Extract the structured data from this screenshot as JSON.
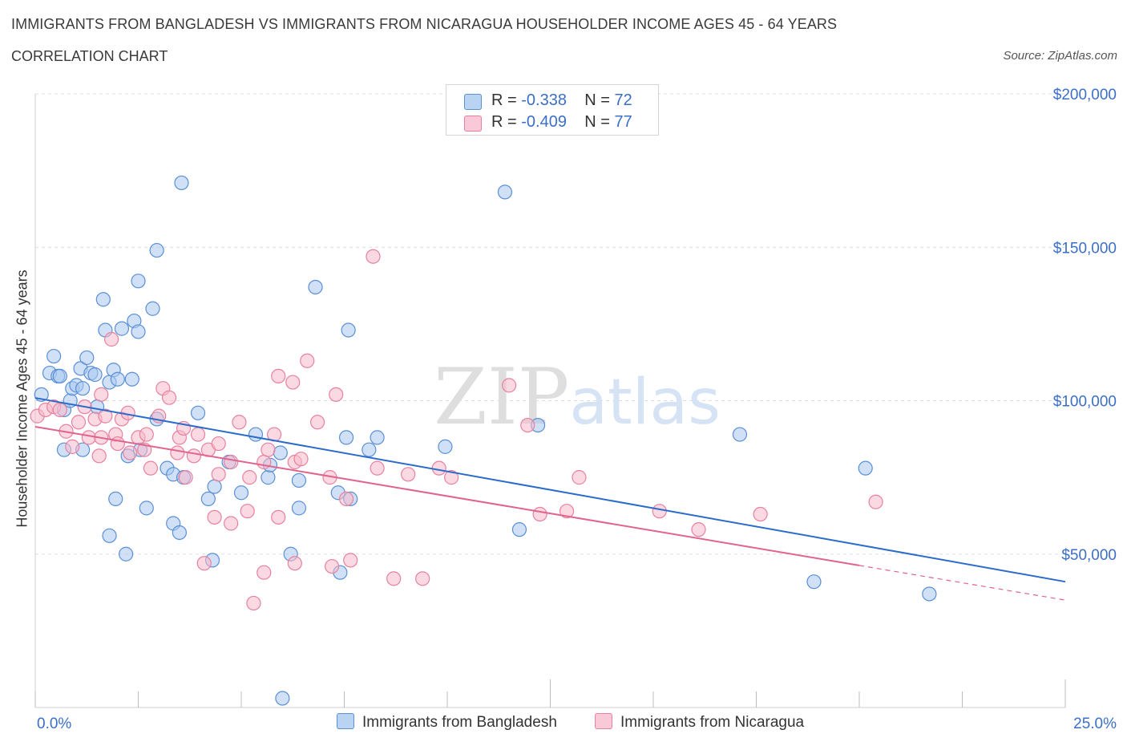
{
  "header": {
    "title": "IMMIGRANTS FROM BANGLADESH VS IMMIGRANTS FROM NICARAGUA HOUSEHOLDER INCOME AGES 45 - 64 YEARS",
    "subtitle": "CORRELATION CHART",
    "source": "Source: ZipAtlas.com"
  },
  "stats_legend": {
    "rows": [
      {
        "r_label": "R = ",
        "r_value": "-0.338",
        "n_label": "N = ",
        "n_value": "72"
      },
      {
        "r_label": "R = ",
        "r_value": "-0.409",
        "n_label": "N = ",
        "n_value": "77"
      }
    ]
  },
  "colors": {
    "bangladesh_fill": "#a9c8f0",
    "bangladesh_stroke": "#5b8fd6",
    "bangladesh_line": "#2b6ccb",
    "nicaragua_fill": "#f7b9cb",
    "nicaragua_stroke": "#e8819f",
    "nicaragua_line": "#e0648e",
    "axis_text": "#3b6fc7",
    "grid": "#dddddd"
  },
  "chart_data": {
    "type": "scatter",
    "title": "IMMIGRANTS FROM BANGLADESH VS IMMIGRANTS FROM NICARAGUA HOUSEHOLDER INCOME AGES 45 - 64 YEARS",
    "subtitle": "CORRELATION CHART",
    "xlabel": "",
    "ylabel": "Householder Income Ages 45 - 64 years",
    "x_unit": "percent",
    "xlim": [
      0,
      25
    ],
    "ylim": [
      0,
      200000
    ],
    "x_tick_labels": [
      "0.0%",
      "25.0%"
    ],
    "y_ticks": [
      50000,
      100000,
      150000,
      200000
    ],
    "y_tick_labels": [
      "$50,000",
      "$100,000",
      "$150,000",
      "$200,000"
    ],
    "grid": true,
    "legend_position": "bottom",
    "watermark": {
      "zip": "ZIP",
      "atlas": "atlas"
    },
    "series": [
      {
        "name": "Immigrants from Bangladesh",
        "r": -0.338,
        "n": 72,
        "trend": {
          "x0": 0,
          "y0": 100900,
          "x1": 25,
          "y1": 41000,
          "solid_until": 25
        },
        "points": [
          [
            0.15,
            102000
          ],
          [
            0.35,
            109000
          ],
          [
            0.55,
            108000
          ],
          [
            0.45,
            114500
          ],
          [
            0.6,
            108000
          ],
          [
            0.7,
            97000
          ],
          [
            0.85,
            100000
          ],
          [
            0.9,
            104000
          ],
          [
            1.0,
            105000
          ],
          [
            1.1,
            110500
          ],
          [
            1.15,
            104000
          ],
          [
            1.25,
            114000
          ],
          [
            1.35,
            109000
          ],
          [
            1.45,
            108500
          ],
          [
            1.5,
            98000
          ],
          [
            1.8,
            106000
          ],
          [
            1.9,
            110000
          ],
          [
            2.0,
            107000
          ],
          [
            1.7,
            123000
          ],
          [
            2.1,
            123500
          ],
          [
            2.4,
            126000
          ],
          [
            2.5,
            139000
          ],
          [
            2.85,
            130000
          ],
          [
            2.95,
            149000
          ],
          [
            3.55,
            171000
          ],
          [
            1.65,
            133000
          ],
          [
            2.5,
            122500
          ],
          [
            2.35,
            107000
          ],
          [
            0.7,
            84000
          ],
          [
            1.15,
            84000
          ],
          [
            2.25,
            82000
          ],
          [
            2.55,
            84000
          ],
          [
            2.95,
            94000
          ],
          [
            3.2,
            78000
          ],
          [
            3.35,
            76000
          ],
          [
            3.6,
            75000
          ],
          [
            3.95,
            96000
          ],
          [
            4.35,
            72000
          ],
          [
            4.7,
            80000
          ],
          [
            4.2,
            68000
          ],
          [
            5.0,
            70000
          ],
          [
            5.35,
            89000
          ],
          [
            5.65,
            75000
          ],
          [
            5.7,
            79000
          ],
          [
            5.95,
            83000
          ],
          [
            6.4,
            74000
          ],
          [
            6.4,
            65000
          ],
          [
            7.55,
            88000
          ],
          [
            6.8,
            137000
          ],
          [
            7.6,
            123000
          ],
          [
            7.35,
            70000
          ],
          [
            7.65,
            68000
          ],
          [
            8.1,
            84000
          ],
          [
            8.3,
            88000
          ],
          [
            9.95,
            85000
          ],
          [
            12.2,
            92000
          ],
          [
            11.4,
            168000
          ],
          [
            11.75,
            58000
          ],
          [
            17.1,
            89000
          ],
          [
            18.9,
            41000
          ],
          [
            20.15,
            78000
          ],
          [
            21.7,
            37000
          ],
          [
            1.8,
            56000
          ],
          [
            2.2,
            50000
          ],
          [
            2.7,
            65000
          ],
          [
            3.35,
            60000
          ],
          [
            3.5,
            57000
          ],
          [
            4.3,
            48000
          ],
          [
            6.2,
            50000
          ],
          [
            7.4,
            44000
          ],
          [
            6.0,
            3000
          ],
          [
            1.95,
            68000
          ]
        ]
      },
      {
        "name": "Immigrants from Nicaragua",
        "r": -0.409,
        "n": 77,
        "trend": {
          "x0": 0,
          "y0": 91500,
          "x1": 25,
          "y1": 35000,
          "solid_until": 20
        },
        "points": [
          [
            0.05,
            95000
          ],
          [
            0.25,
            97000
          ],
          [
            0.45,
            98000
          ],
          [
            0.6,
            97000
          ],
          [
            0.75,
            90000
          ],
          [
            0.9,
            85000
          ],
          [
            1.05,
            93000
          ],
          [
            1.2,
            98000
          ],
          [
            1.3,
            88000
          ],
          [
            1.45,
            94000
          ],
          [
            1.55,
            82000
          ],
          [
            1.6,
            88000
          ],
          [
            1.6,
            102000
          ],
          [
            1.7,
            95000
          ],
          [
            1.85,
            120000
          ],
          [
            1.95,
            89000
          ],
          [
            2.0,
            86000
          ],
          [
            2.1,
            94000
          ],
          [
            2.25,
            96000
          ],
          [
            2.3,
            83000
          ],
          [
            2.5,
            88000
          ],
          [
            2.65,
            84000
          ],
          [
            2.7,
            89000
          ],
          [
            2.8,
            78000
          ],
          [
            3.0,
            95000
          ],
          [
            3.1,
            104000
          ],
          [
            3.25,
            101000
          ],
          [
            3.45,
            83000
          ],
          [
            3.5,
            88000
          ],
          [
            3.6,
            91000
          ],
          [
            3.65,
            75000
          ],
          [
            3.85,
            82000
          ],
          [
            3.95,
            89000
          ],
          [
            4.2,
            84000
          ],
          [
            4.45,
            86000
          ],
          [
            4.45,
            76000
          ],
          [
            4.75,
            80000
          ],
          [
            4.95,
            93000
          ],
          [
            5.2,
            75000
          ],
          [
            5.55,
            80000
          ],
          [
            5.65,
            84000
          ],
          [
            5.8,
            89000
          ],
          [
            5.9,
            108000
          ],
          [
            6.25,
            106000
          ],
          [
            6.3,
            80000
          ],
          [
            6.45,
            81000
          ],
          [
            6.6,
            113000
          ],
          [
            6.85,
            93000
          ],
          [
            7.15,
            75000
          ],
          [
            7.3,
            102000
          ],
          [
            7.55,
            68000
          ],
          [
            7.65,
            48000
          ],
          [
            8.3,
            78000
          ],
          [
            8.2,
            147000
          ],
          [
            9.05,
            76000
          ],
          [
            9.8,
            78000
          ],
          [
            10.1,
            75000
          ],
          [
            11.5,
            105000
          ],
          [
            11.95,
            92000
          ],
          [
            12.25,
            63000
          ],
          [
            12.9,
            64000
          ],
          [
            13.2,
            75000
          ],
          [
            15.15,
            64000
          ],
          [
            16.1,
            58000
          ],
          [
            17.6,
            63000
          ],
          [
            20.4,
            67000
          ],
          [
            4.1,
            47000
          ],
          [
            4.35,
            62000
          ],
          [
            4.75,
            60000
          ],
          [
            5.15,
            64000
          ],
          [
            5.55,
            44000
          ],
          [
            5.9,
            62000
          ],
          [
            6.3,
            47000
          ],
          [
            7.2,
            46000
          ],
          [
            8.7,
            42000
          ],
          [
            9.4,
            42000
          ],
          [
            5.3,
            34000
          ]
        ]
      }
    ]
  }
}
